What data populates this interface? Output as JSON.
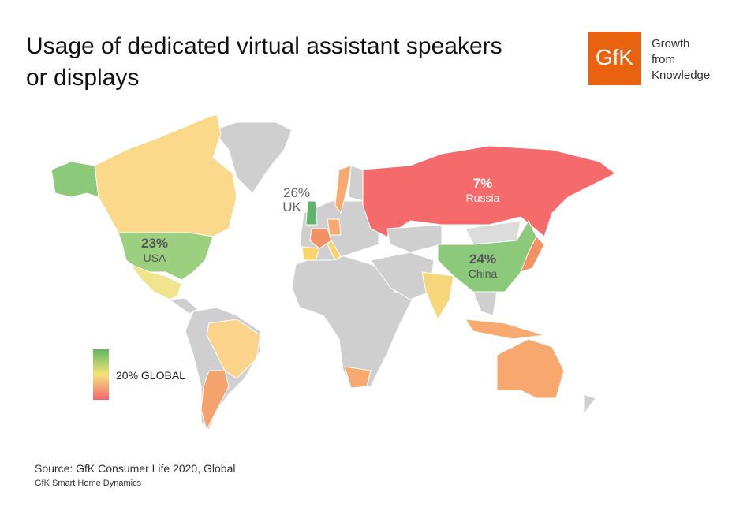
{
  "header": {
    "title_lines": [
      "Usage of dedicated virtual assistant speakers",
      "or displays"
    ],
    "logo": {
      "mark": "GfK",
      "tagline": [
        "Growth",
        "from",
        "Knowledge"
      ]
    }
  },
  "map": {
    "labels": [
      {
        "value": "7%",
        "name": "Russia"
      },
      {
        "value": "23%",
        "name": "USA"
      },
      {
        "value": "24%",
        "name": "China"
      },
      {
        "value": "26%",
        "name": "UK"
      }
    ],
    "legend": "20% GLOBAL"
  },
  "footer": {
    "source": "Source: GfK Consumer Life 2020, Global",
    "note": "GfK Smart Home Dynamics"
  }
}
